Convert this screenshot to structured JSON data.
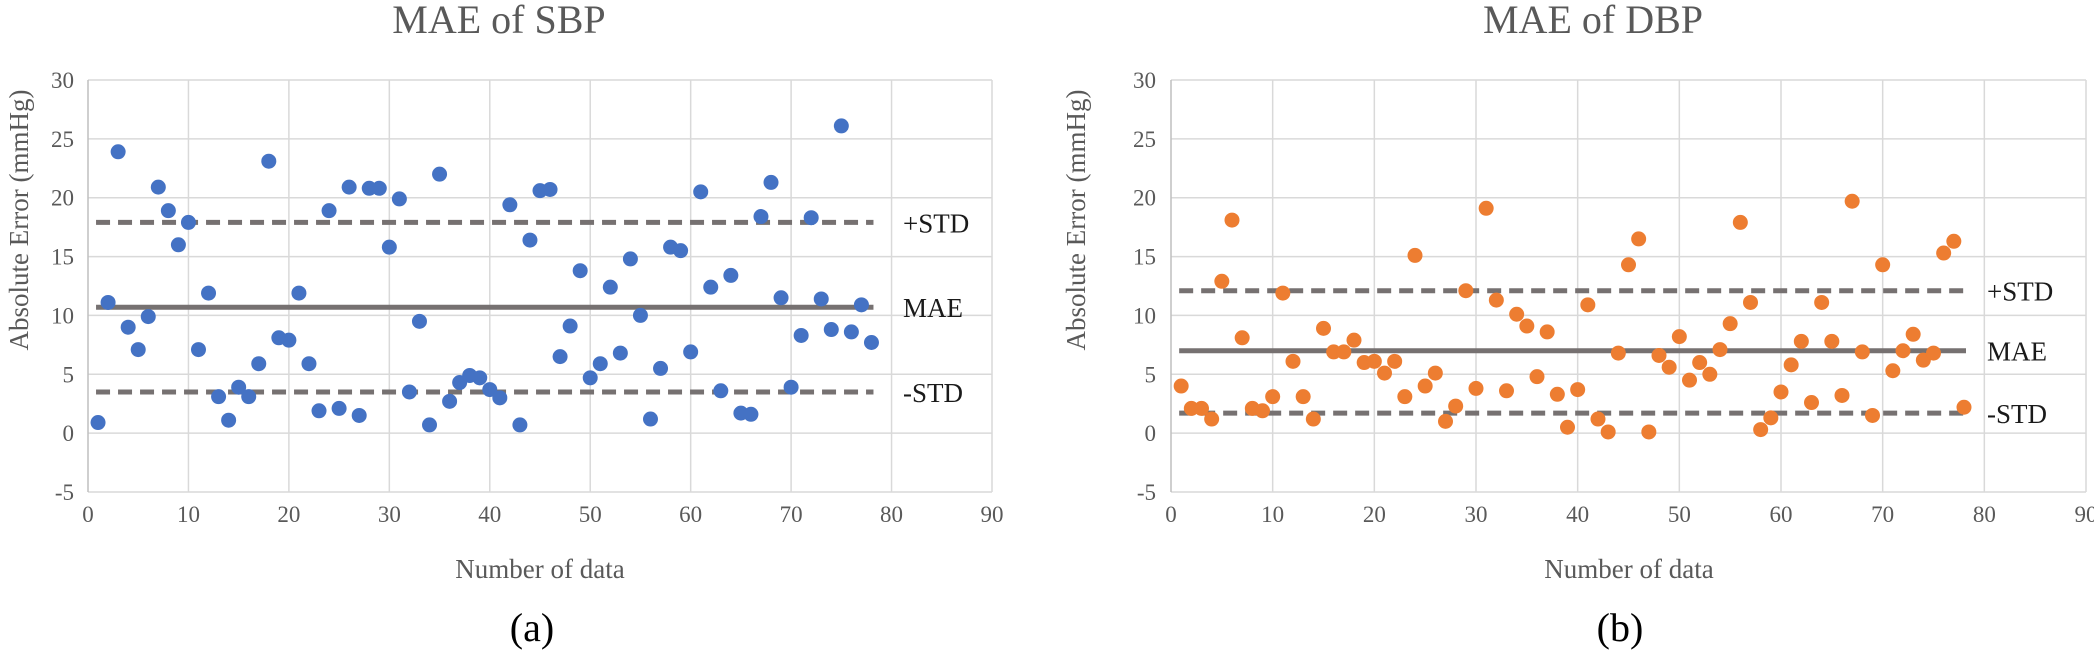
{
  "chart_data": [
    {
      "type": "scatter",
      "title": "MAE of SBP",
      "xlabel": "Number of data",
      "ylabel": "Absolute Error  (mmHg)",
      "xlim": [
        0,
        90
      ],
      "ylim": [
        -5,
        30
      ],
      "xticks": [
        0,
        10,
        20,
        30,
        40,
        50,
        60,
        70,
        80,
        90
      ],
      "yticks": [
        -5,
        0,
        5,
        10,
        15,
        20,
        25,
        30
      ],
      "xtick_labels": [
        "0",
        "10",
        "20",
        "30",
        "40",
        "50",
        "60",
        "70",
        "80",
        "90"
      ],
      "ytick_labels": [
        "-5",
        "0",
        "5",
        "10",
        "15",
        "20",
        "25",
        "30"
      ],
      "grid": true,
      "caption": "(a)",
      "marker_color": "#4472c4",
      "line_color": "#767171",
      "series": [
        {
          "name": "SBP absolute error",
          "x": [
            1,
            2,
            3,
            4,
            5,
            6,
            7,
            8,
            9,
            10,
            11,
            12,
            13,
            14,
            15,
            16,
            17,
            18,
            19,
            20,
            21,
            22,
            23,
            24,
            25,
            26,
            27,
            28,
            29,
            30,
            31,
            32,
            33,
            34,
            35,
            36,
            37,
            38,
            39,
            40,
            41,
            42,
            43,
            44,
            45,
            46,
            47,
            48,
            49,
            50,
            51,
            52,
            53,
            54,
            55,
            56,
            57,
            58,
            59,
            60,
            61,
            62,
            63,
            64,
            65,
            66,
            67,
            68,
            69,
            70,
            71,
            72,
            73,
            74,
            75,
            76,
            77,
            78
          ],
          "y": [
            0.9,
            11.1,
            23.9,
            9.0,
            7.1,
            9.9,
            20.9,
            18.9,
            16.0,
            17.9,
            7.1,
            11.9,
            3.1,
            1.1,
            3.9,
            3.1,
            5.9,
            23.1,
            8.1,
            7.9,
            11.9,
            5.9,
            1.9,
            18.9,
            2.1,
            20.9,
            1.5,
            20.8,
            20.8,
            15.8,
            19.9,
            3.5,
            9.5,
            0.7,
            22.0,
            2.7,
            4.3,
            4.9,
            4.7,
            3.7,
            3.0,
            19.4,
            0.7,
            16.4,
            20.6,
            20.7,
            6.5,
            9.1,
            13.8,
            4.7,
            5.9,
            12.4,
            6.8,
            14.8,
            10.0,
            1.2,
            5.5,
            15.8,
            15.5,
            6.9,
            20.5,
            12.4,
            3.6,
            13.4,
            1.7,
            1.6,
            18.4,
            21.3,
            11.5,
            3.9,
            8.3,
            18.3,
            11.4,
            8.8,
            26.1,
            8.6,
            10.9,
            7.7
          ]
        }
      ],
      "reference_lines": [
        {
          "name": "+STD",
          "label": "+STD",
          "value": 17.9,
          "style": "dashed"
        },
        {
          "name": "MAE",
          "label": "MAE",
          "value": 10.7,
          "style": "solid"
        },
        {
          "name": "-STD",
          "label": "-STD",
          "value": 3.5,
          "style": "dashed"
        }
      ]
    },
    {
      "type": "scatter",
      "title": "MAE of DBP",
      "xlabel": "Number of data",
      "ylabel": "Absolute Error  (mmHg)",
      "xlim": [
        0,
        90
      ],
      "ylim": [
        -5,
        30
      ],
      "xticks": [
        0,
        10,
        20,
        30,
        40,
        50,
        60,
        70,
        80,
        90
      ],
      "yticks": [
        -5,
        0,
        5,
        10,
        15,
        20,
        25,
        30
      ],
      "xtick_labels": [
        "0",
        "10",
        "20",
        "30",
        "40",
        "50",
        "60",
        "70",
        "80",
        "90"
      ],
      "ytick_labels": [
        "-5",
        "0",
        "5",
        "10",
        "15",
        "20",
        "25",
        "30"
      ],
      "grid": true,
      "caption": "(b)",
      "marker_color": "#ed7d31",
      "line_color": "#767171",
      "series": [
        {
          "name": "DBP absolute error",
          "x": [
            1,
            2,
            3,
            4,
            5,
            6,
            7,
            8,
            9,
            10,
            11,
            12,
            13,
            14,
            15,
            16,
            17,
            18,
            19,
            20,
            21,
            22,
            23,
            24,
            25,
            26,
            27,
            28,
            29,
            30,
            31,
            32,
            33,
            34,
            35,
            36,
            37,
            38,
            39,
            40,
            41,
            42,
            43,
            44,
            45,
            46,
            47,
            48,
            49,
            50,
            51,
            52,
            53,
            54,
            55,
            56,
            57,
            58,
            59,
            60,
            61,
            62,
            63,
            64,
            65,
            66,
            67,
            68,
            69,
            70,
            71,
            72,
            73,
            74,
            75,
            76,
            77,
            78
          ],
          "y": [
            4.0,
            2.1,
            2.1,
            1.2,
            12.9,
            18.1,
            8.1,
            2.1,
            1.9,
            3.1,
            11.9,
            6.1,
            3.1,
            1.2,
            8.9,
            6.9,
            6.9,
            7.9,
            6.0,
            6.1,
            5.1,
            6.1,
            3.1,
            15.1,
            4.0,
            5.1,
            1.0,
            2.3,
            12.1,
            3.8,
            19.1,
            11.3,
            3.6,
            10.1,
            9.1,
            4.8,
            8.6,
            3.3,
            0.5,
            3.7,
            10.9,
            1.2,
            0.1,
            6.8,
            14.3,
            16.5,
            0.1,
            6.6,
            5.6,
            8.2,
            4.5,
            6.0,
            5.0,
            7.1,
            9.3,
            17.9,
            11.1,
            0.3,
            1.3,
            3.5,
            5.8,
            7.8,
            2.6,
            11.1,
            7.8,
            3.2,
            19.7,
            6.9,
            1.5,
            14.3,
            5.3,
            7.0,
            8.4,
            6.2,
            6.8,
            15.3,
            16.3,
            2.2
          ]
        }
      ],
      "reference_lines": [
        {
          "name": "+STD",
          "label": "+STD",
          "value": 12.1,
          "style": "dashed"
        },
        {
          "name": "MAE",
          "label": "MAE",
          "value": 7.0,
          "style": "solid"
        },
        {
          "name": "-STD",
          "label": "-STD",
          "value": 1.7,
          "style": "dashed"
        }
      ]
    }
  ]
}
